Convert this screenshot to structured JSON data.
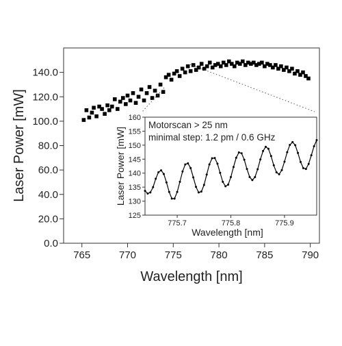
{
  "chart_data": [
    {
      "type": "scatter",
      "role": "main",
      "xlabel": "Wavelength [nm]",
      "ylabel": "Laser Power [mW]",
      "xlim": [
        763,
        791
      ],
      "ylim": [
        0,
        160
      ],
      "x_ticks": [
        765,
        770,
        775,
        780,
        785,
        790
      ],
      "x_tick_labels": [
        "765",
        "770",
        "775",
        "780",
        "785",
        "790"
      ],
      "y_ticks": [
        0,
        20,
        40,
        60,
        80,
        100,
        120,
        140
      ],
      "y_tick_labels": [
        "0.0",
        "20.0",
        "40.0",
        "60.0",
        "80.0",
        "100.0",
        "120.0",
        "140.0"
      ],
      "marker": "square",
      "color": "#000000",
      "series": [
        {
          "x": [
            765.2,
            765.5,
            765.8,
            766.1,
            766.3,
            766.6,
            766.9,
            767.2,
            767.5,
            767.8,
            768.0,
            768.3,
            768.6,
            768.9,
            769.2,
            769.5,
            769.8,
            770.0,
            770.3,
            770.6,
            770.9,
            771.2,
            771.5,
            771.8,
            772.1,
            772.4,
            772.7,
            773.0,
            773.3,
            773.6,
            773.9,
            774.2,
            774.5,
            774.8,
            775.1,
            775.4,
            775.7,
            776.0,
            776.3,
            776.6,
            776.9,
            777.2,
            777.5,
            777.8,
            778.1,
            778.4,
            778.7,
            779.0,
            779.3,
            779.6,
            779.9,
            780.2,
            780.5,
            780.8,
            781.1,
            781.4,
            781.7,
            782.0,
            782.3,
            782.6,
            782.9,
            783.2,
            783.5,
            783.8,
            784.1,
            784.4,
            784.7,
            785.0,
            785.3,
            785.6,
            785.9,
            786.2,
            786.5,
            786.8,
            787.1,
            787.4,
            787.7,
            788.0,
            788.3,
            788.6,
            788.9,
            789.2,
            789.5,
            789.8
          ],
          "y": [
            101,
            109,
            103,
            107,
            111,
            104,
            112,
            110,
            106,
            113,
            109,
            112,
            118,
            110,
            116,
            119,
            114,
            121,
            117,
            123,
            115,
            120,
            126,
            117,
            123,
            128,
            119,
            125,
            121,
            130,
            124,
            136,
            138,
            134,
            139,
            141,
            137,
            143,
            140,
            145,
            141,
            146,
            142,
            144,
            147,
            143,
            145,
            148,
            144,
            146,
            147,
            145,
            148,
            146,
            149,
            147,
            145,
            148,
            147,
            149,
            146,
            148,
            147,
            148,
            146,
            147,
            148,
            145,
            147,
            146,
            144,
            146,
            143,
            145,
            142,
            144,
            141,
            143,
            139,
            141,
            138,
            140,
            137,
            135
          ]
        }
      ]
    },
    {
      "type": "line",
      "role": "inset",
      "title_lines": [
        "Motorscan > 25 nm",
        "minimal step: 1.2 pm / 0.6 GHz"
      ],
      "xlabel": "Wavelength [nm]",
      "ylabel": "Laser Power [mW]",
      "xlim": [
        775.64,
        775.96
      ],
      "ylim": [
        125,
        160
      ],
      "x_ticks": [
        775.7,
        775.8,
        775.9
      ],
      "x_tick_labels": [
        "775.7",
        "775.8",
        "775.9"
      ],
      "y_ticks": [
        125,
        130,
        135,
        140,
        145,
        150,
        155,
        160
      ],
      "y_tick_labels": [
        "125",
        "130",
        "135",
        "140",
        "145",
        "150",
        "155",
        "160"
      ],
      "marker": "dot",
      "color": "#000000",
      "oscillation": {
        "period_nm": 0.0455,
        "trough_first": 130.5,
        "trough_last": 140.0,
        "peak_first": 141.0,
        "peak_last": 150.0
      },
      "series": [
        {
          "x": [
            775.64,
            775.645,
            775.65,
            775.655,
            775.66,
            775.665,
            775.67,
            775.675,
            775.68,
            775.685,
            775.69,
            775.695,
            775.7,
            775.705,
            775.71,
            775.715,
            775.72,
            775.725,
            775.73,
            775.735,
            775.74,
            775.745,
            775.75,
            775.755,
            775.76,
            775.765,
            775.77,
            775.775,
            775.78,
            775.785,
            775.79,
            775.795,
            775.8,
            775.805,
            775.81,
            775.815,
            775.82,
            775.825,
            775.83,
            775.835,
            775.84,
            775.845,
            775.85,
            775.855,
            775.86,
            775.865,
            775.87,
            775.875,
            775.88,
            775.885,
            775.89,
            775.895,
            775.9,
            775.905,
            775.91,
            775.915,
            775.92,
            775.925,
            775.93,
            775.935,
            775.94,
            775.945,
            775.95,
            775.955,
            775.96
          ],
          "y": [
            133.7,
            132.7,
            133.1,
            135.0,
            138.0,
            140.3,
            141.0,
            139.7,
            136.7,
            133.3,
            130.9,
            130.9,
            133.3,
            136.9,
            140.6,
            143.1,
            143.5,
            141.8,
            138.5,
            135.1,
            133.1,
            133.4,
            135.8,
            139.5,
            143.1,
            145.3,
            145.4,
            143.4,
            140.1,
            136.9,
            135.3,
            135.9,
            138.6,
            142.2,
            145.5,
            147.4,
            147.1,
            144.8,
            141.5,
            138.6,
            137.5,
            138.6,
            141.4,
            144.9,
            147.9,
            149.4,
            148.7,
            146.1,
            142.8,
            140.3,
            139.6,
            141.1,
            144.1,
            147.5,
            150.1,
            151.1,
            150.0,
            147.2,
            144.0,
            141.8,
            141.5,
            143.3,
            146.4,
            149.6,
            151.8
          ]
        }
      ]
    }
  ]
}
